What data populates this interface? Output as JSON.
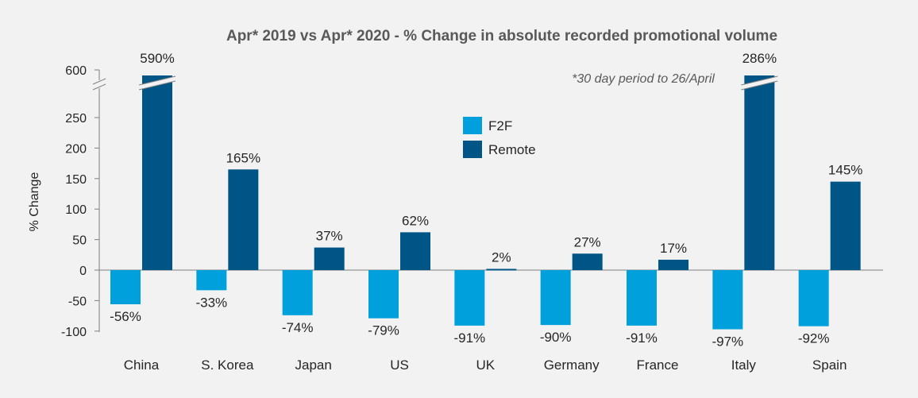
{
  "chart_data": {
    "type": "bar",
    "title": "Apr* 2019 vs Apr* 2020 - % Change in absolute recorded promotional volume",
    "note": "*30 day period to 26/April",
    "ylabel": "% Change",
    "ylim": [
      -100,
      600
    ],
    "axis_break": {
      "from": 250,
      "to": 600
    },
    "yticks": [
      "-100",
      "-50",
      "0",
      "50",
      "100",
      "150",
      "200",
      "250",
      "600"
    ],
    "categories": [
      "China",
      "S. Korea",
      "Japan",
      "US",
      "UK",
      "Germany",
      "France",
      "Italy",
      "Spain"
    ],
    "series": [
      {
        "name": "F2F",
        "color": "#00a0dc",
        "values": [
          -56,
          -33,
          -74,
          -79,
          -91,
          -90,
          -91,
          -97,
          -92
        ],
        "labels": [
          "-56%",
          "-33%",
          "-74%",
          "-79%",
          "-91%",
          "-90%",
          "-91%",
          "-97%",
          "-92%"
        ]
      },
      {
        "name": "Remote",
        "color": "#005587",
        "values": [
          590,
          165,
          37,
          62,
          2,
          27,
          17,
          286,
          145
        ],
        "labels": [
          "590%",
          "165%",
          "37%",
          "62%",
          "2%",
          "27%",
          "17%",
          "286%",
          "145%"
        ]
      }
    ],
    "legend_position": "top-center",
    "grid": false
  }
}
